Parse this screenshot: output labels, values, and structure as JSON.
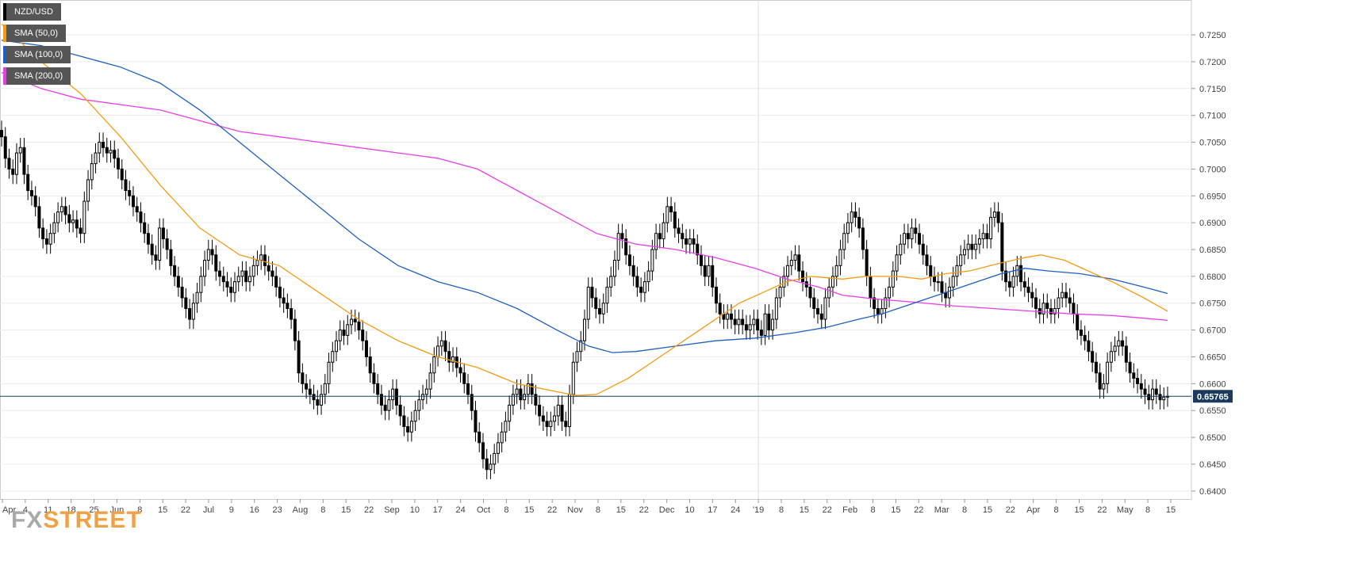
{
  "chart_data": {
    "type": "candlestick",
    "symbol": "NZD/USD",
    "legend": [
      {
        "label": "NZD/USD",
        "color": "#000000"
      },
      {
        "label": "SMA (50,0)",
        "color": "#f39c12"
      },
      {
        "label": "SMA (100,0)",
        "color": "#1f5fbf"
      },
      {
        "label": "SMA (200,0)",
        "color": "#e83ee8"
      }
    ],
    "ylim": [
      0.6385,
      0.7315
    ],
    "y_ticks": [
      "0.6400",
      "0.6450",
      "0.6500",
      "0.6550",
      "0.6600",
      "0.6650",
      "0.6700",
      "0.6750",
      "0.6800",
      "0.6850",
      "0.6900",
      "0.6950",
      "0.7000",
      "0.7050",
      "0.7100",
      "0.7150",
      "0.7200",
      "0.7250"
    ],
    "x_ticks": [
      "Apr",
      "4",
      "11",
      "18",
      "25",
      "Jun",
      "8",
      "15",
      "22",
      "Jul",
      "9",
      "16",
      "23",
      "Aug",
      "8",
      "15",
      "22",
      "Sep",
      "10",
      "17",
      "24",
      "Oct",
      "8",
      "15",
      "22",
      "Nov",
      "8",
      "15",
      "22",
      "Dec",
      "10",
      "17",
      "24",
      "'19",
      "8",
      "15",
      "22",
      "Feb",
      "8",
      "15",
      "22",
      "Mar",
      "8",
      "15",
      "22",
      "Apr",
      "8",
      "15",
      "22",
      "May",
      "8",
      "15"
    ],
    "current_price": 0.65765,
    "current_price_label": "0.65765",
    "closes": [
      0.706,
      0.702,
      0.7,
      0.699,
      0.703,
      0.704,
      0.699,
      0.696,
      0.695,
      0.693,
      0.689,
      0.687,
      0.686,
      0.688,
      0.69,
      0.692,
      0.693,
      0.6915,
      0.69,
      0.6905,
      0.689,
      0.688,
      0.694,
      0.698,
      0.701,
      0.703,
      0.705,
      0.704,
      0.703,
      0.7035,
      0.702,
      0.7,
      0.698,
      0.696,
      0.695,
      0.693,
      0.692,
      0.69,
      0.688,
      0.686,
      0.684,
      0.683,
      0.689,
      0.687,
      0.685,
      0.682,
      0.68,
      0.678,
      0.676,
      0.674,
      0.672,
      0.675,
      0.677,
      0.68,
      0.683,
      0.685,
      0.684,
      0.681,
      0.68,
      0.679,
      0.678,
      0.677,
      0.679,
      0.68,
      0.681,
      0.679,
      0.68,
      0.682,
      0.683,
      0.684,
      0.682,
      0.681,
      0.68,
      0.678,
      0.676,
      0.675,
      0.674,
      0.672,
      0.668,
      0.662,
      0.66,
      0.659,
      0.658,
      0.657,
      0.656,
      0.658,
      0.66,
      0.664,
      0.666,
      0.668,
      0.67,
      0.669,
      0.671,
      0.672,
      0.6715,
      0.67,
      0.668,
      0.665,
      0.662,
      0.66,
      0.658,
      0.656,
      0.655,
      0.657,
      0.659,
      0.656,
      0.654,
      0.652,
      0.651,
      0.653,
      0.655,
      0.657,
      0.658,
      0.659,
      0.662,
      0.665,
      0.667,
      0.668,
      0.666,
      0.664,
      0.665,
      0.663,
      0.662,
      0.66,
      0.658,
      0.655,
      0.651,
      0.649,
      0.646,
      0.644,
      0.645,
      0.647,
      0.649,
      0.651,
      0.653,
      0.656,
      0.658,
      0.659,
      0.657,
      0.658,
      0.66,
      0.658,
      0.656,
      0.654,
      0.653,
      0.652,
      0.653,
      0.654,
      0.656,
      0.653,
      0.652,
      0.658,
      0.664,
      0.666,
      0.668,
      0.672,
      0.678,
      0.676,
      0.674,
      0.673,
      0.675,
      0.678,
      0.68,
      0.683,
      0.688,
      0.687,
      0.684,
      0.682,
      0.68,
      0.678,
      0.677,
      0.679,
      0.681,
      0.685,
      0.688,
      0.687,
      0.69,
      0.693,
      0.692,
      0.689,
      0.688,
      0.687,
      0.686,
      0.687,
      0.686,
      0.684,
      0.682,
      0.68,
      0.682,
      0.678,
      0.675,
      0.673,
      0.672,
      0.673,
      0.672,
      0.671,
      0.672,
      0.671,
      0.67,
      0.671,
      0.672,
      0.67,
      0.669,
      0.673,
      0.67,
      0.672,
      0.676,
      0.678,
      0.68,
      0.682,
      0.683,
      0.684,
      0.681,
      0.679,
      0.678,
      0.676,
      0.674,
      0.673,
      0.672,
      0.676,
      0.678,
      0.68,
      0.682,
      0.685,
      0.688,
      0.69,
      0.692,
      0.691,
      0.689,
      0.685,
      0.68,
      0.676,
      0.674,
      0.673,
      0.674,
      0.676,
      0.678,
      0.681,
      0.684,
      0.686,
      0.688,
      0.687,
      0.689,
      0.688,
      0.686,
      0.684,
      0.682,
      0.68,
      0.679,
      0.679,
      0.677,
      0.676,
      0.678,
      0.68,
      0.682,
      0.684,
      0.685,
      0.686,
      0.685,
      0.686,
      0.687,
      0.688,
      0.687,
      0.691,
      0.692,
      0.69,
      0.681,
      0.679,
      0.678,
      0.68,
      0.682,
      0.679,
      0.678,
      0.677,
      0.676,
      0.674,
      0.673,
      0.675,
      0.674,
      0.673,
      0.674,
      0.676,
      0.677,
      0.676,
      0.675,
      0.673,
      0.67,
      0.669,
      0.668,
      0.666,
      0.664,
      0.662,
      0.659,
      0.66,
      0.664,
      0.666,
      0.667,
      0.668,
      0.667,
      0.664,
      0.662,
      0.661,
      0.66,
      0.659,
      0.658,
      0.657,
      0.659,
      0.658,
      0.657,
      0.6575,
      0.65765
    ],
    "sma50": [
      [
        0,
        0.727
      ],
      [
        50,
        0.72
      ],
      [
        100,
        0.714
      ],
      [
        150,
        0.706
      ],
      [
        200,
        0.697
      ],
      [
        250,
        0.689
      ],
      [
        300,
        0.684
      ],
      [
        350,
        0.682
      ],
      [
        400,
        0.677
      ],
      [
        450,
        0.672
      ],
      [
        500,
        0.668
      ],
      [
        550,
        0.665
      ],
      [
        600,
        0.663
      ],
      [
        650,
        0.66
      ],
      [
        700,
        0.6585
      ],
      [
        725,
        0.6578
      ],
      [
        750,
        0.658
      ],
      [
        790,
        0.661
      ],
      [
        830,
        0.665
      ],
      [
        870,
        0.669
      ],
      [
        900,
        0.672
      ],
      [
        930,
        0.675
      ],
      [
        960,
        0.677
      ],
      [
        990,
        0.679
      ],
      [
        1020,
        0.68
      ],
      [
        1060,
        0.6795
      ],
      [
        1090,
        0.68
      ],
      [
        1130,
        0.68
      ],
      [
        1160,
        0.6795
      ],
      [
        1190,
        0.6805
      ],
      [
        1220,
        0.681
      ],
      [
        1260,
        0.6825
      ],
      [
        1290,
        0.6835
      ],
      [
        1310,
        0.684
      ],
      [
        1340,
        0.683
      ],
      [
        1370,
        0.681
      ],
      [
        1400,
        0.679
      ],
      [
        1440,
        0.676
      ],
      [
        1470,
        0.6735
      ]
    ],
    "sma100": [
      [
        0,
        0.724
      ],
      [
        50,
        0.723
      ],
      [
        100,
        0.721
      ],
      [
        150,
        0.719
      ],
      [
        200,
        0.716
      ],
      [
        250,
        0.711
      ],
      [
        300,
        0.705
      ],
      [
        350,
        0.699
      ],
      [
        400,
        0.693
      ],
      [
        450,
        0.687
      ],
      [
        500,
        0.682
      ],
      [
        550,
        0.679
      ],
      [
        600,
        0.677
      ],
      [
        650,
        0.674
      ],
      [
        700,
        0.67
      ],
      [
        740,
        0.667
      ],
      [
        770,
        0.6658
      ],
      [
        800,
        0.666
      ],
      [
        850,
        0.667
      ],
      [
        900,
        0.668
      ],
      [
        950,
        0.6685
      ],
      [
        1000,
        0.6695
      ],
      [
        1040,
        0.6705
      ],
      [
        1080,
        0.672
      ],
      [
        1110,
        0.673
      ],
      [
        1150,
        0.675
      ],
      [
        1190,
        0.677
      ],
      [
        1230,
        0.679
      ],
      [
        1260,
        0.6805
      ],
      [
        1290,
        0.6815
      ],
      [
        1320,
        0.681
      ],
      [
        1360,
        0.6805
      ],
      [
        1400,
        0.6795
      ],
      [
        1440,
        0.678
      ],
      [
        1470,
        0.6768
      ]
    ],
    "sma200": [
      [
        0,
        0.718
      ],
      [
        50,
        0.715
      ],
      [
        100,
        0.713
      ],
      [
        150,
        0.712
      ],
      [
        200,
        0.711
      ],
      [
        250,
        0.709
      ],
      [
        300,
        0.707
      ],
      [
        350,
        0.706
      ],
      [
        400,
        0.705
      ],
      [
        450,
        0.704
      ],
      [
        500,
        0.703
      ],
      [
        550,
        0.702
      ],
      [
        600,
        0.7
      ],
      [
        650,
        0.696
      ],
      [
        700,
        0.692
      ],
      [
        750,
        0.688
      ],
      [
        800,
        0.686
      ],
      [
        850,
        0.685
      ],
      [
        900,
        0.6835
      ],
      [
        950,
        0.6815
      ],
      [
        990,
        0.6795
      ],
      [
        1030,
        0.678
      ],
      [
        1060,
        0.6765
      ],
      [
        1100,
        0.6758
      ],
      [
        1150,
        0.6752
      ],
      [
        1200,
        0.6745
      ],
      [
        1250,
        0.674
      ],
      [
        1300,
        0.6735
      ],
      [
        1350,
        0.673
      ],
      [
        1400,
        0.6727
      ],
      [
        1440,
        0.6722
      ],
      [
        1470,
        0.6718
      ]
    ]
  },
  "branding": {
    "logo_fx": "FX",
    "logo_street": "STREET"
  }
}
